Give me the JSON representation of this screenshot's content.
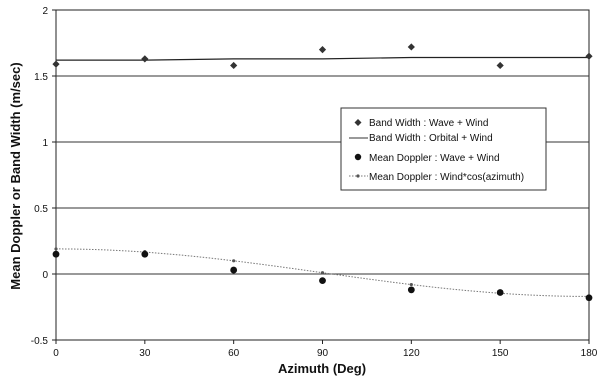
{
  "chart_data": {
    "type": "scatter",
    "title": "",
    "xlabel": "Azimuth (Deg)",
    "ylabel": "Mean Doppler or Band Width (m/sec)",
    "xlim": [
      0,
      180
    ],
    "ylim": [
      -0.5,
      2
    ],
    "x_ticks": [
      "0",
      "30",
      "60",
      "90",
      "120",
      "150",
      "180"
    ],
    "y_ticks": [
      "-0.5",
      "0",
      "0.5",
      "1",
      "1.5",
      "2"
    ],
    "grid": "horizontal",
    "legend_placement": "right-center",
    "series": [
      {
        "name": "Band Width : Wave + Wind",
        "marker": "diamond",
        "color": "#333333",
        "x": [
          0,
          30,
          60,
          90,
          120,
          150,
          180
        ],
        "y": [
          1.59,
          1.63,
          1.58,
          1.7,
          1.72,
          1.58,
          1.65
        ]
      },
      {
        "name": "Band Width : Orbital + Wind",
        "marker": "line",
        "color": "#333333",
        "x": [
          0,
          30,
          60,
          90,
          120,
          150,
          180
        ],
        "y": [
          1.62,
          1.62,
          1.63,
          1.63,
          1.64,
          1.64,
          1.64
        ]
      },
      {
        "name": "Mean Doppler :  Wave + Wind",
        "marker": "circle",
        "color": "#111111",
        "x": [
          0,
          30,
          60,
          90,
          120,
          150,
          180
        ],
        "y": [
          0.15,
          0.15,
          0.03,
          -0.05,
          -0.12,
          -0.14,
          -0.18
        ]
      },
      {
        "name": "Mean Doppler :  Wind*cos(azimuth)",
        "marker": "small-dot-line",
        "color": "#666666",
        "x": [
          0,
          30,
          60,
          90,
          120,
          150,
          180
        ],
        "y": [
          0.19,
          0.17,
          0.1,
          0.01,
          -0.08,
          -0.15,
          -0.17
        ]
      }
    ]
  }
}
